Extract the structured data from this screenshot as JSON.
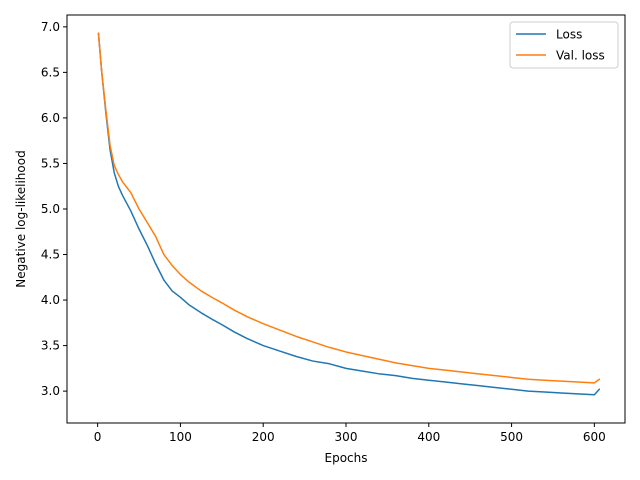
{
  "chart_data": {
    "type": "line",
    "xlabel": "Epochs",
    "ylabel": "Negative log-likelihood",
    "xlim": [
      -37,
      637
    ],
    "ylim": [
      2.65,
      7.13
    ],
    "xticks": [
      0,
      100,
      200,
      300,
      400,
      500,
      600
    ],
    "xtick_labels": [
      "0",
      "100",
      "200",
      "300",
      "400",
      "500",
      "600"
    ],
    "yticks": [
      3.0,
      3.5,
      4.0,
      4.5,
      5.0,
      5.5,
      6.0,
      6.5,
      7.0
    ],
    "ytick_labels": [
      "3.0",
      "3.5",
      "4.0",
      "4.5",
      "5.0",
      "5.5",
      "6.0",
      "6.5",
      "7.0"
    ],
    "grid": false,
    "legend_position": "top-right",
    "series": [
      {
        "name": "Loss",
        "color": "#1f77b4",
        "x": [
          1,
          5,
          10,
          15,
          20,
          25,
          30,
          40,
          50,
          60,
          70,
          80,
          90,
          100,
          110,
          125,
          140,
          150,
          165,
          180,
          200,
          220,
          240,
          260,
          280,
          300,
          320,
          340,
          360,
          380,
          400,
          420,
          440,
          460,
          480,
          500,
          520,
          540,
          560,
          580,
          600,
          606
        ],
        "y": [
          6.93,
          6.5,
          6.05,
          5.65,
          5.4,
          5.25,
          5.15,
          4.98,
          4.78,
          4.6,
          4.4,
          4.22,
          4.1,
          4.03,
          3.95,
          3.86,
          3.78,
          3.73,
          3.65,
          3.58,
          3.5,
          3.44,
          3.38,
          3.33,
          3.3,
          3.25,
          3.22,
          3.19,
          3.17,
          3.14,
          3.12,
          3.1,
          3.08,
          3.06,
          3.04,
          3.02,
          3.0,
          2.99,
          2.98,
          2.97,
          2.96,
          3.02
        ]
      },
      {
        "name": "Val. loss",
        "color": "#ff7f0e",
        "x": [
          1,
          5,
          10,
          15,
          20,
          25,
          30,
          40,
          50,
          60,
          70,
          80,
          90,
          100,
          110,
          125,
          140,
          150,
          165,
          180,
          200,
          220,
          240,
          260,
          280,
          300,
          320,
          340,
          360,
          380,
          400,
          420,
          440,
          460,
          480,
          500,
          520,
          540,
          560,
          580,
          600,
          606
        ],
        "y": [
          6.93,
          6.5,
          6.08,
          5.7,
          5.48,
          5.38,
          5.3,
          5.18,
          5.0,
          4.85,
          4.7,
          4.5,
          4.38,
          4.28,
          4.2,
          4.1,
          4.02,
          3.97,
          3.89,
          3.82,
          3.74,
          3.67,
          3.6,
          3.54,
          3.48,
          3.43,
          3.39,
          3.35,
          3.31,
          3.28,
          3.25,
          3.23,
          3.21,
          3.19,
          3.17,
          3.15,
          3.13,
          3.12,
          3.11,
          3.1,
          3.09,
          3.13
        ]
      }
    ]
  }
}
